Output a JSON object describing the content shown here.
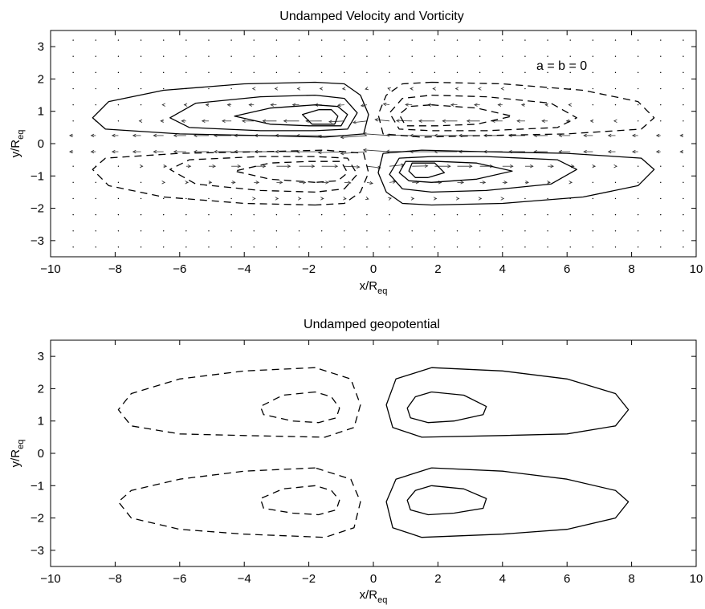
{
  "chart_data": [
    {
      "type": "contour",
      "title": "Undamped Velocity and Vorticity",
      "xlabel": "x/R",
      "xlabel_sub": "eq",
      "ylabel": "y/R",
      "ylabel_sub": "eq",
      "annotation": "a = b = 0",
      "xlim": [
        -10,
        10
      ],
      "ylim": [
        -3.5,
        3.5
      ],
      "xticks": [
        -10,
        -8,
        -6,
        -4,
        -2,
        0,
        2,
        4,
        6,
        8,
        10
      ],
      "yticks": [
        -3,
        -2,
        -1,
        0,
        1,
        2,
        3
      ],
      "grid": false,
      "quiver": {
        "x_start": -9.3,
        "x_step": 0.7,
        "y_values": [
          -3.2,
          -2.7,
          -2.2,
          -1.7,
          -1.2,
          -0.7,
          -0.25,
          0.25,
          0.7,
          1.2,
          1.7,
          2.2,
          2.7,
          3.2
        ]
      },
      "contours": [
        {
          "style": "solid",
          "points": [
            [
              -1.8,
              1.9
            ],
            [
              -4,
              1.85
            ],
            [
              -6.5,
              1.65
            ],
            [
              -8.2,
              1.3
            ],
            [
              -8.7,
              0.8
            ],
            [
              -8.3,
              0.45
            ],
            [
              -6,
              0.3
            ],
            [
              -3.5,
              0.25
            ],
            [
              -1.5,
              0.2
            ],
            [
              -0.3,
              0.3
            ],
            [
              -0.15,
              0.9
            ],
            [
              -0.4,
              1.5
            ],
            [
              -0.9,
              1.85
            ],
            [
              -1.8,
              1.9
            ]
          ]
        },
        {
          "style": "solid",
          "points": [
            [
              -1.8,
              1.5
            ],
            [
              -3.5,
              1.45
            ],
            [
              -5.5,
              1.25
            ],
            [
              -6.3,
              0.8
            ],
            [
              -5.7,
              0.5
            ],
            [
              -3.5,
              0.4
            ],
            [
              -1.8,
              0.4
            ],
            [
              -0.8,
              0.45
            ],
            [
              -0.5,
              0.95
            ],
            [
              -0.9,
              1.4
            ],
            [
              -1.8,
              1.5
            ]
          ]
        },
        {
          "style": "solid",
          "points": [
            [
              -1.8,
              1.2
            ],
            [
              -3.2,
              1.1
            ],
            [
              -4.3,
              0.85
            ],
            [
              -3.2,
              0.6
            ],
            [
              -2,
              0.55
            ],
            [
              -1,
              0.55
            ],
            [
              -0.8,
              0.9
            ],
            [
              -1.1,
              1.15
            ],
            [
              -1.8,
              1.2
            ]
          ]
        },
        {
          "style": "solid",
          "points": [
            [
              -1.7,
              1.05
            ],
            [
              -2.2,
              0.9
            ],
            [
              -1.9,
              0.6
            ],
            [
              -1.2,
              0.6
            ],
            [
              -1.1,
              0.85
            ],
            [
              -1.3,
              1.05
            ],
            [
              -1.7,
              1.05
            ]
          ]
        },
        {
          "style": "solid",
          "points": [
            [
              1.8,
              -1.9
            ],
            [
              4,
              -1.85
            ],
            [
              6.5,
              -1.65
            ],
            [
              8.2,
              -1.3
            ],
            [
              8.7,
              -0.8
            ],
            [
              8.3,
              -0.45
            ],
            [
              6,
              -0.3
            ],
            [
              3.5,
              -0.25
            ],
            [
              1.5,
              -0.2
            ],
            [
              0.3,
              -0.3
            ],
            [
              0.15,
              -0.9
            ],
            [
              0.4,
              -1.5
            ],
            [
              0.9,
              -1.85
            ],
            [
              1.8,
              -1.9
            ]
          ]
        },
        {
          "style": "solid",
          "points": [
            [
              1.8,
              -1.5
            ],
            [
              3.5,
              -1.45
            ],
            [
              5.5,
              -1.25
            ],
            [
              6.3,
              -0.8
            ],
            [
              5.7,
              -0.5
            ],
            [
              3.5,
              -0.4
            ],
            [
              1.8,
              -0.4
            ],
            [
              0.8,
              -0.45
            ],
            [
              0.5,
              -0.95
            ],
            [
              0.9,
              -1.4
            ],
            [
              1.8,
              -1.5
            ]
          ]
        },
        {
          "style": "solid",
          "points": [
            [
              1.8,
              -1.2
            ],
            [
              3.2,
              -1.1
            ],
            [
              4.3,
              -0.85
            ],
            [
              3.2,
              -0.6
            ],
            [
              2,
              -0.55
            ],
            [
              1,
              -0.55
            ],
            [
              0.8,
              -0.9
            ],
            [
              1.1,
              -1.15
            ],
            [
              1.8,
              -1.2
            ]
          ]
        },
        {
          "style": "solid",
          "points": [
            [
              1.7,
              -1.05
            ],
            [
              2.2,
              -0.9
            ],
            [
              1.9,
              -0.6
            ],
            [
              1.2,
              -0.6
            ],
            [
              1.1,
              -0.85
            ],
            [
              1.3,
              -1.05
            ],
            [
              1.7,
              -1.05
            ]
          ]
        },
        {
          "style": "dashed",
          "points": [
            [
              1.8,
              1.9
            ],
            [
              4,
              1.85
            ],
            [
              6.5,
              1.65
            ],
            [
              8.2,
              1.3
            ],
            [
              8.7,
              0.8
            ],
            [
              8.3,
              0.45
            ],
            [
              6,
              0.3
            ],
            [
              3.5,
              0.25
            ],
            [
              1.5,
              0.2
            ],
            [
              0.3,
              0.3
            ],
            [
              0.15,
              0.9
            ],
            [
              0.4,
              1.5
            ],
            [
              0.9,
              1.85
            ],
            [
              1.8,
              1.9
            ]
          ]
        },
        {
          "style": "dashed",
          "points": [
            [
              1.8,
              1.5
            ],
            [
              3.5,
              1.45
            ],
            [
              5.5,
              1.25
            ],
            [
              6.3,
              0.8
            ],
            [
              5.7,
              0.5
            ],
            [
              3.5,
              0.4
            ],
            [
              1.8,
              0.4
            ],
            [
              0.8,
              0.45
            ],
            [
              0.5,
              0.95
            ],
            [
              0.9,
              1.4
            ],
            [
              1.8,
              1.5
            ]
          ]
        },
        {
          "style": "dashed",
          "points": [
            [
              1.8,
              1.2
            ],
            [
              3.2,
              1.1
            ],
            [
              4.3,
              0.85
            ],
            [
              3.2,
              0.6
            ],
            [
              2,
              0.55
            ],
            [
              1,
              0.55
            ],
            [
              0.8,
              0.9
            ],
            [
              1.1,
              1.15
            ],
            [
              1.8,
              1.2
            ]
          ]
        },
        {
          "style": "dashed",
          "points": [
            [
              -1.8,
              -1.9
            ],
            [
              -4,
              -1.85
            ],
            [
              -6.5,
              -1.65
            ],
            [
              -8.2,
              -1.3
            ],
            [
              -8.7,
              -0.8
            ],
            [
              -8.3,
              -0.45
            ],
            [
              -6,
              -0.3
            ],
            [
              -3.5,
              -0.25
            ],
            [
              -1.5,
              -0.2
            ],
            [
              -0.3,
              -0.3
            ],
            [
              -0.15,
              -0.9
            ],
            [
              -0.4,
              -1.5
            ],
            [
              -0.9,
              -1.85
            ],
            [
              -1.8,
              -1.9
            ]
          ]
        },
        {
          "style": "dashed",
          "points": [
            [
              -1.8,
              -1.5
            ],
            [
              -3.5,
              -1.45
            ],
            [
              -5.5,
              -1.25
            ],
            [
              -6.3,
              -0.8
            ],
            [
              -5.7,
              -0.5
            ],
            [
              -3.5,
              -0.4
            ],
            [
              -1.8,
              -0.4
            ],
            [
              -0.8,
              -0.45
            ],
            [
              -0.5,
              -0.95
            ],
            [
              -0.9,
              -1.4
            ],
            [
              -1.8,
              -1.5
            ]
          ]
        },
        {
          "style": "dashed",
          "points": [
            [
              -1.8,
              -1.2
            ],
            [
              -3.2,
              -1.1
            ],
            [
              -4.3,
              -0.85
            ],
            [
              -3.2,
              -0.6
            ],
            [
              -2,
              -0.55
            ],
            [
              -1,
              -0.55
            ],
            [
              -0.8,
              -0.9
            ],
            [
              -1.1,
              -1.15
            ],
            [
              -1.8,
              -1.2
            ]
          ]
        }
      ]
    },
    {
      "type": "contour",
      "title": "Undamped geopotential",
      "xlabel": "x/R",
      "xlabel_sub": "eq",
      "ylabel": "y/R",
      "ylabel_sub": "eq",
      "xlim": [
        -10,
        10
      ],
      "ylim": [
        -3.5,
        3.5
      ],
      "xticks": [
        -10,
        -8,
        -6,
        -4,
        -2,
        0,
        2,
        4,
        6,
        8,
        10
      ],
      "yticks": [
        -3,
        -2,
        -1,
        0,
        1,
        2,
        3
      ],
      "grid": false,
      "contours": [
        {
          "style": "solid",
          "points": [
            [
              1.8,
              2.65
            ],
            [
              4,
              2.55
            ],
            [
              6,
              2.3
            ],
            [
              7.5,
              1.85
            ],
            [
              7.9,
              1.35
            ],
            [
              7.5,
              0.85
            ],
            [
              6,
              0.6
            ],
            [
              4,
              0.55
            ],
            [
              1.5,
              0.5
            ],
            [
              0.6,
              0.8
            ],
            [
              0.4,
              1.5
            ],
            [
              0.7,
              2.3
            ],
            [
              1.8,
              2.65
            ]
          ]
        },
        {
          "style": "solid",
          "points": [
            [
              1.8,
              1.9
            ],
            [
              2.8,
              1.8
            ],
            [
              3.5,
              1.45
            ],
            [
              3.4,
              1.2
            ],
            [
              2.5,
              1.0
            ],
            [
              1.7,
              0.95
            ],
            [
              1.15,
              1.1
            ],
            [
              1.05,
              1.4
            ],
            [
              1.3,
              1.75
            ],
            [
              1.8,
              1.9
            ]
          ]
        },
        {
          "style": "solid",
          "points": [
            [
              1.8,
              -0.45
            ],
            [
              4,
              -0.55
            ],
            [
              6,
              -0.8
            ],
            [
              7.5,
              -1.15
            ],
            [
              7.9,
              -1.5
            ],
            [
              7.5,
              -2.0
            ],
            [
              6,
              -2.35
            ],
            [
              4,
              -2.5
            ],
            [
              1.5,
              -2.6
            ],
            [
              0.6,
              -2.3
            ],
            [
              0.4,
              -1.5
            ],
            [
              0.7,
              -0.8
            ],
            [
              1.8,
              -0.45
            ]
          ]
        },
        {
          "style": "solid",
          "points": [
            [
              1.8,
              -1.0
            ],
            [
              2.8,
              -1.1
            ],
            [
              3.5,
              -1.4
            ],
            [
              3.4,
              -1.7
            ],
            [
              2.5,
              -1.85
            ],
            [
              1.7,
              -1.9
            ],
            [
              1.15,
              -1.75
            ],
            [
              1.05,
              -1.45
            ],
            [
              1.3,
              -1.15
            ],
            [
              1.8,
              -1.0
            ]
          ]
        },
        {
          "style": "dashed",
          "points": [
            [
              -1.8,
              2.65
            ],
            [
              -4,
              2.55
            ],
            [
              -6,
              2.3
            ],
            [
              -7.5,
              1.85
            ],
            [
              -7.9,
              1.35
            ],
            [
              -7.5,
              0.85
            ],
            [
              -6,
              0.6
            ],
            [
              -4,
              0.55
            ],
            [
              -1.5,
              0.5
            ],
            [
              -0.6,
              0.8
            ],
            [
              -0.4,
              1.5
            ],
            [
              -0.7,
              2.3
            ],
            [
              -1.8,
              2.65
            ]
          ]
        },
        {
          "style": "dashed",
          "points": [
            [
              -1.8,
              1.9
            ],
            [
              -2.8,
              1.8
            ],
            [
              -3.5,
              1.45
            ],
            [
              -3.4,
              1.2
            ],
            [
              -2.5,
              1.0
            ],
            [
              -1.7,
              0.95
            ],
            [
              -1.15,
              1.1
            ],
            [
              -1.05,
              1.4
            ],
            [
              -1.3,
              1.75
            ],
            [
              -1.8,
              1.9
            ]
          ]
        },
        {
          "style": "dashed",
          "points": [
            [
              -1.8,
              -0.45
            ],
            [
              -4,
              -0.55
            ],
            [
              -6,
              -0.8
            ],
            [
              -7.5,
              -1.15
            ],
            [
              -7.9,
              -1.5
            ],
            [
              -7.5,
              -2.0
            ],
            [
              -6,
              -2.35
            ],
            [
              -4,
              -2.5
            ],
            [
              -1.5,
              -2.6
            ],
            [
              -0.6,
              -2.3
            ],
            [
              -0.4,
              -1.5
            ],
            [
              -0.7,
              -0.8
            ],
            [
              -1.8,
              -0.45
            ]
          ]
        },
        {
          "style": "dashed",
          "points": [
            [
              -1.8,
              -1.0
            ],
            [
              -2.8,
              -1.1
            ],
            [
              -3.5,
              -1.4
            ],
            [
              -3.4,
              -1.7
            ],
            [
              -2.5,
              -1.85
            ],
            [
              -1.7,
              -1.9
            ],
            [
              -1.15,
              -1.75
            ],
            [
              -1.05,
              -1.45
            ],
            [
              -1.3,
              -1.15
            ],
            [
              -1.8,
              -1.0
            ]
          ]
        }
      ]
    }
  ]
}
